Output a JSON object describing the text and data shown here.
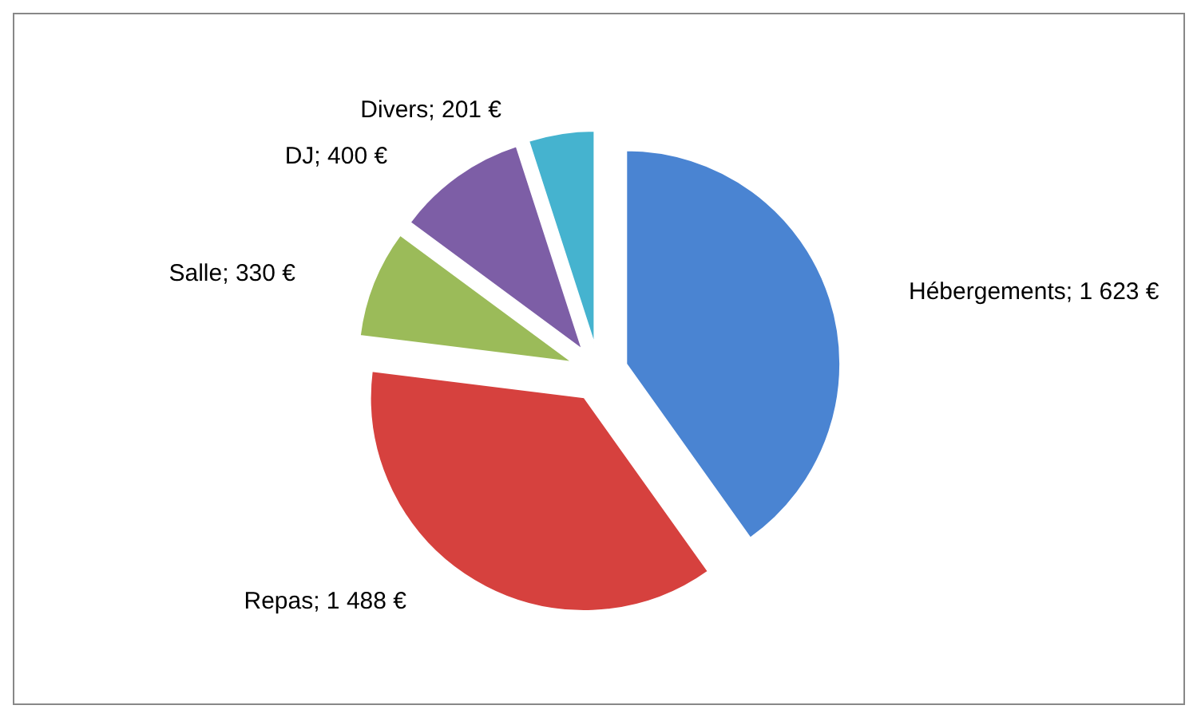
{
  "chart_data": {
    "type": "pie",
    "categories": [
      "Hébergements",
      "Repas",
      "Salle",
      "DJ",
      "Divers"
    ],
    "values": [
      1623,
      1488,
      330,
      400,
      201
    ],
    "value_labels": [
      "1 623 €",
      "1 488 €",
      "330 €",
      "400 €",
      "201 €"
    ],
    "colors": [
      "#4a84d2",
      "#d6413e",
      "#9bbb59",
      "#7d5ea6",
      "#45b3cf"
    ],
    "legend": false
  }
}
